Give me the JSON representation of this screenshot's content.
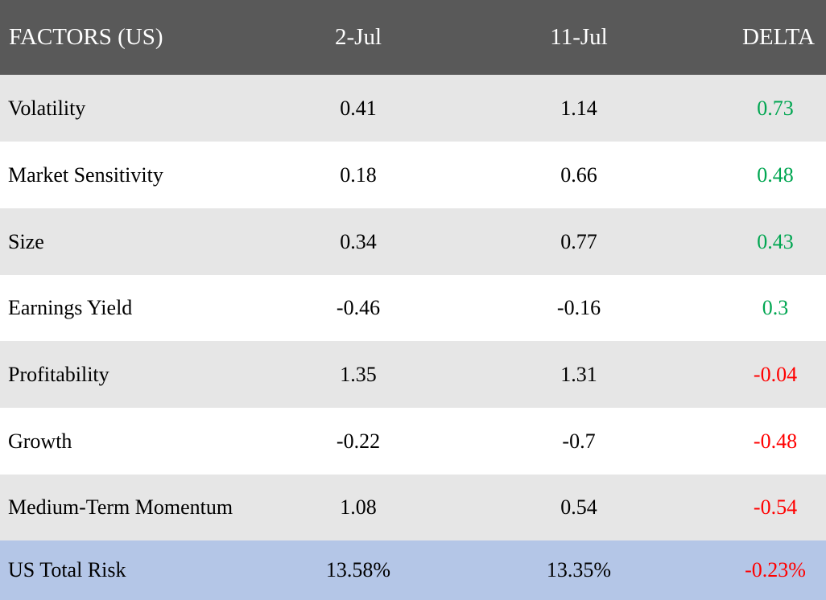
{
  "chart_data": {
    "type": "table",
    "columns": [
      "FACTORS (US)",
      "2-Jul",
      "11-Jul",
      "DELTA"
    ],
    "rows": [
      {
        "factor": "Volatility",
        "jul2": "0.41",
        "jul11": "1.14",
        "delta": "0.73"
      },
      {
        "factor": "Market Sensitivity",
        "jul2": "0.18",
        "jul11": "0.66",
        "delta": "0.48"
      },
      {
        "factor": "Size",
        "jul2": "0.34",
        "jul11": "0.77",
        "delta": "0.43"
      },
      {
        "factor": "Earnings Yield",
        "jul2": "-0.46",
        "jul11": "-0.16",
        "delta": "0.3"
      },
      {
        "factor": "Profitability",
        "jul2": "1.35",
        "jul11": "1.31",
        "delta": "-0.04"
      },
      {
        "factor": "Growth",
        "jul2": "-0.22",
        "jul11": "-0.7",
        "delta": "-0.48"
      },
      {
        "factor": "Medium-Term Momentum",
        "jul2": "1.08",
        "jul11": "0.54",
        "delta": "-0.54"
      }
    ],
    "total": {
      "factor": "US Total Risk",
      "jul2": "13.58%",
      "jul11": "13.35%",
      "delta": "-0.23%"
    }
  },
  "colors": {
    "header_bg": "#595959",
    "header_text": "#ffffff",
    "row_gray": "#e6e6e6",
    "row_white": "#ffffff",
    "total_bg": "#b4c6e7",
    "positive": "#00a651",
    "negative": "#ff0000"
  }
}
